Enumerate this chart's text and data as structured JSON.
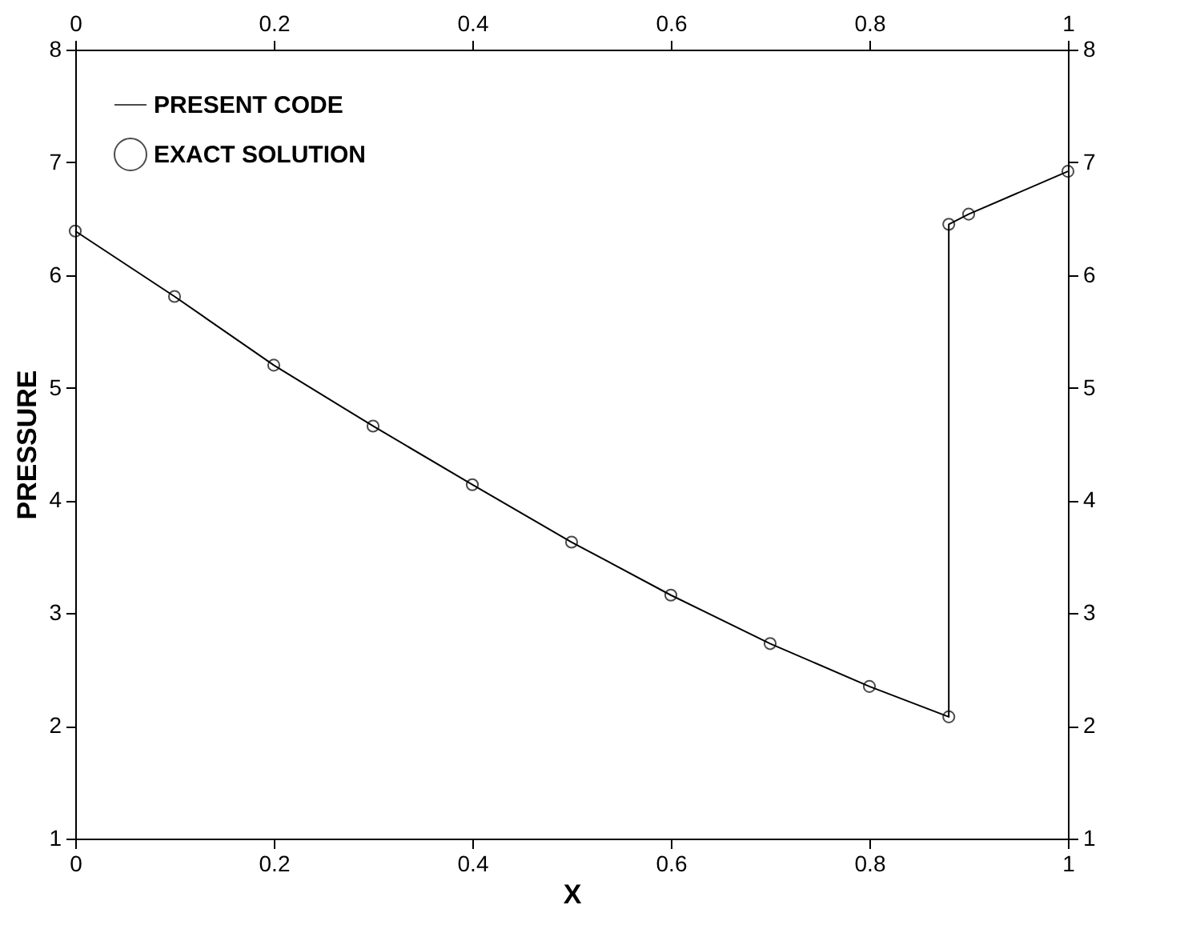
{
  "chart_data": {
    "type": "line",
    "xlabel": "X",
    "ylabel": "PRESSURE",
    "xlim": [
      0,
      1
    ],
    "xticks": [
      0,
      0.2,
      0.4,
      0.6,
      0.8,
      1
    ],
    "x2lim": [
      0,
      1
    ],
    "x2ticks": [
      0,
      0.2,
      0.4,
      0.6,
      0.8,
      1
    ],
    "ylim": [
      1,
      8
    ],
    "yticks": [
      1,
      2,
      3,
      4,
      5,
      6,
      7,
      8
    ],
    "y2lim": [
      1,
      8
    ],
    "y2ticks": [
      1,
      2,
      3,
      4,
      5,
      6,
      7,
      8
    ],
    "grid": false,
    "legend": "top left",
    "series": [
      {
        "name": "PRESENT CODE",
        "type": "line",
        "color": "#000000",
        "marker": "none",
        "line_style": "solid",
        "x": [
          0,
          0.1,
          0.2,
          0.3,
          0.4,
          0.5,
          0.6,
          0.7,
          0.8,
          0.88,
          0.88,
          0.9,
          1
        ],
        "values": [
          6.39,
          5.81,
          5.2,
          4.66,
          4.14,
          3.63,
          3.16,
          2.73,
          2.35,
          2.08,
          6.45,
          6.54,
          6.92
        ]
      },
      {
        "name": "EXACT SOLUTION",
        "type": "scatter",
        "color": "#000000",
        "marker": "circle",
        "x": [
          0,
          0.1,
          0.2,
          0.3,
          0.4,
          0.5,
          0.6,
          0.7,
          0.8,
          0.88,
          0.88,
          0.9,
          1
        ],
        "values": [
          6.39,
          5.81,
          5.2,
          4.66,
          4.14,
          3.63,
          3.16,
          2.73,
          2.35,
          2.08,
          6.45,
          6.54,
          6.92
        ]
      }
    ]
  }
}
